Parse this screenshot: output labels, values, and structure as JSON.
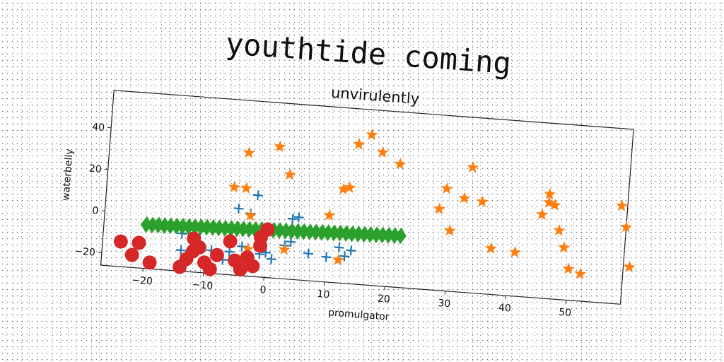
{
  "chart_data": {
    "type": "scatter",
    "title": "youthtide coming",
    "subtitle": "unvirulently",
    "xlabel": "promulgator",
    "ylabel": "waterbelly",
    "xlim": [
      -27,
      59
    ],
    "ylim": [
      -26,
      58
    ],
    "xticks": [
      -20,
      -10,
      0,
      10,
      20,
      30,
      40,
      50
    ],
    "yticks": [
      -20,
      0,
      20,
      40
    ],
    "grid": false,
    "series": [
      {
        "marker": "plus",
        "color": "#1f77b4",
        "points": [
          [
            -14,
            -16
          ],
          [
            -12,
            -12
          ],
          [
            -9,
            -15
          ],
          [
            -7,
            -19
          ],
          [
            -6,
            -15
          ],
          [
            -4,
            -12
          ],
          [
            -3,
            -17
          ],
          [
            -1,
            -15
          ],
          [
            0,
            -14
          ],
          [
            1,
            -17
          ],
          [
            3,
            -10
          ],
          [
            4,
            -8
          ],
          [
            7,
            -13
          ],
          [
            10,
            -14
          ],
          [
            12,
            -9
          ],
          [
            13,
            -13
          ],
          [
            14,
            -10
          ],
          [
            -5,
            6
          ],
          [
            -3,
            4
          ],
          [
            -2,
            13
          ],
          [
            4,
            3
          ],
          [
            5,
            4
          ],
          [
            -14,
            -8
          ],
          [
            -11,
            -6
          ],
          [
            -6,
            -9
          ]
        ]
      },
      {
        "marker": "star",
        "color": "#ff7f0e",
        "points": [
          [
            -6,
            16
          ],
          [
            -4,
            16
          ],
          [
            -4,
            33
          ],
          [
            -3,
            3
          ],
          [
            -3,
            -13
          ],
          [
            1,
            37
          ],
          [
            3,
            24
          ],
          [
            3,
            -12
          ],
          [
            10,
            6
          ],
          [
            12,
            19
          ],
          [
            13,
            20
          ],
          [
            14,
            41
          ],
          [
            16,
            46
          ],
          [
            18,
            38
          ],
          [
            21,
            33
          ],
          [
            20,
            -1
          ],
          [
            12,
            -15
          ],
          [
            28,
            13
          ],
          [
            29,
            23
          ],
          [
            30,
            3
          ],
          [
            32,
            19
          ],
          [
            33,
            34
          ],
          [
            35,
            18
          ],
          [
            37,
            -4
          ],
          [
            41,
            -5
          ],
          [
            45,
            14
          ],
          [
            46,
            24
          ],
          [
            46,
            20
          ],
          [
            47,
            19
          ],
          [
            48,
            7
          ],
          [
            49,
            -1
          ],
          [
            50,
            -11
          ],
          [
            52,
            -13
          ],
          [
            58,
            21
          ],
          [
            59,
            11
          ],
          [
            60,
            -8
          ]
        ]
      },
      {
        "marker": "diamond",
        "color": "#2ca02c",
        "points": [
          [
            -20,
            -5
          ],
          [
            -19,
            -5
          ],
          [
            -18,
            -4.8
          ],
          [
            -17,
            -4.8
          ],
          [
            -16,
            -4.7
          ],
          [
            -15,
            -4.6
          ],
          [
            -14,
            -4.5
          ],
          [
            -13,
            -4.4
          ],
          [
            -12,
            -4.3
          ],
          [
            -11,
            -4.2
          ],
          [
            -10,
            -4.1
          ],
          [
            -9,
            -4
          ],
          [
            -8,
            -4
          ],
          [
            -7,
            -3.9
          ],
          [
            -6,
            -3.8
          ],
          [
            -5,
            -3.7
          ],
          [
            -4,
            -3.6
          ],
          [
            -3,
            -3.5
          ],
          [
            -2,
            -3.4
          ],
          [
            -1,
            -3.3
          ],
          [
            0,
            -3.2
          ],
          [
            1,
            -3.1
          ],
          [
            2,
            -3
          ],
          [
            3,
            -3
          ],
          [
            4,
            -2.9
          ],
          [
            5,
            -2.8
          ],
          [
            6,
            -2.7
          ],
          [
            7,
            -2.6
          ],
          [
            8,
            -2.5
          ],
          [
            9,
            -2.4
          ],
          [
            10,
            -2.3
          ],
          [
            11,
            -2.2
          ],
          [
            12,
            -2.1
          ],
          [
            13,
            -2
          ],
          [
            14,
            -2
          ],
          [
            15,
            -1.9
          ],
          [
            16,
            -1.8
          ],
          [
            17,
            -1.7
          ],
          [
            18,
            -1.6
          ],
          [
            19,
            -1.5
          ],
          [
            20,
            -1.4
          ],
          [
            21,
            -1.3
          ],
          [
            22,
            -1.2
          ]
        ]
      },
      {
        "marker": "circle",
        "color": "#d62728",
        "points": [
          [
            -24,
            -14
          ],
          [
            -21,
            -14
          ],
          [
            -22,
            -20
          ],
          [
            -19,
            -23
          ],
          [
            -14,
            -24
          ],
          [
            -12,
            -10
          ],
          [
            -12,
            -16
          ],
          [
            -13,
            -20
          ],
          [
            -11,
            -14
          ],
          [
            -10,
            -21
          ],
          [
            -9,
            -24
          ],
          [
            -8,
            -17
          ],
          [
            -6,
            -10
          ],
          [
            -5,
            -19
          ],
          [
            -4,
            -23
          ],
          [
            -3,
            -17
          ],
          [
            -2,
            -21
          ],
          [
            -1,
            -11
          ],
          [
            -1,
            -7
          ],
          [
            0,
            -3
          ]
        ]
      }
    ]
  }
}
